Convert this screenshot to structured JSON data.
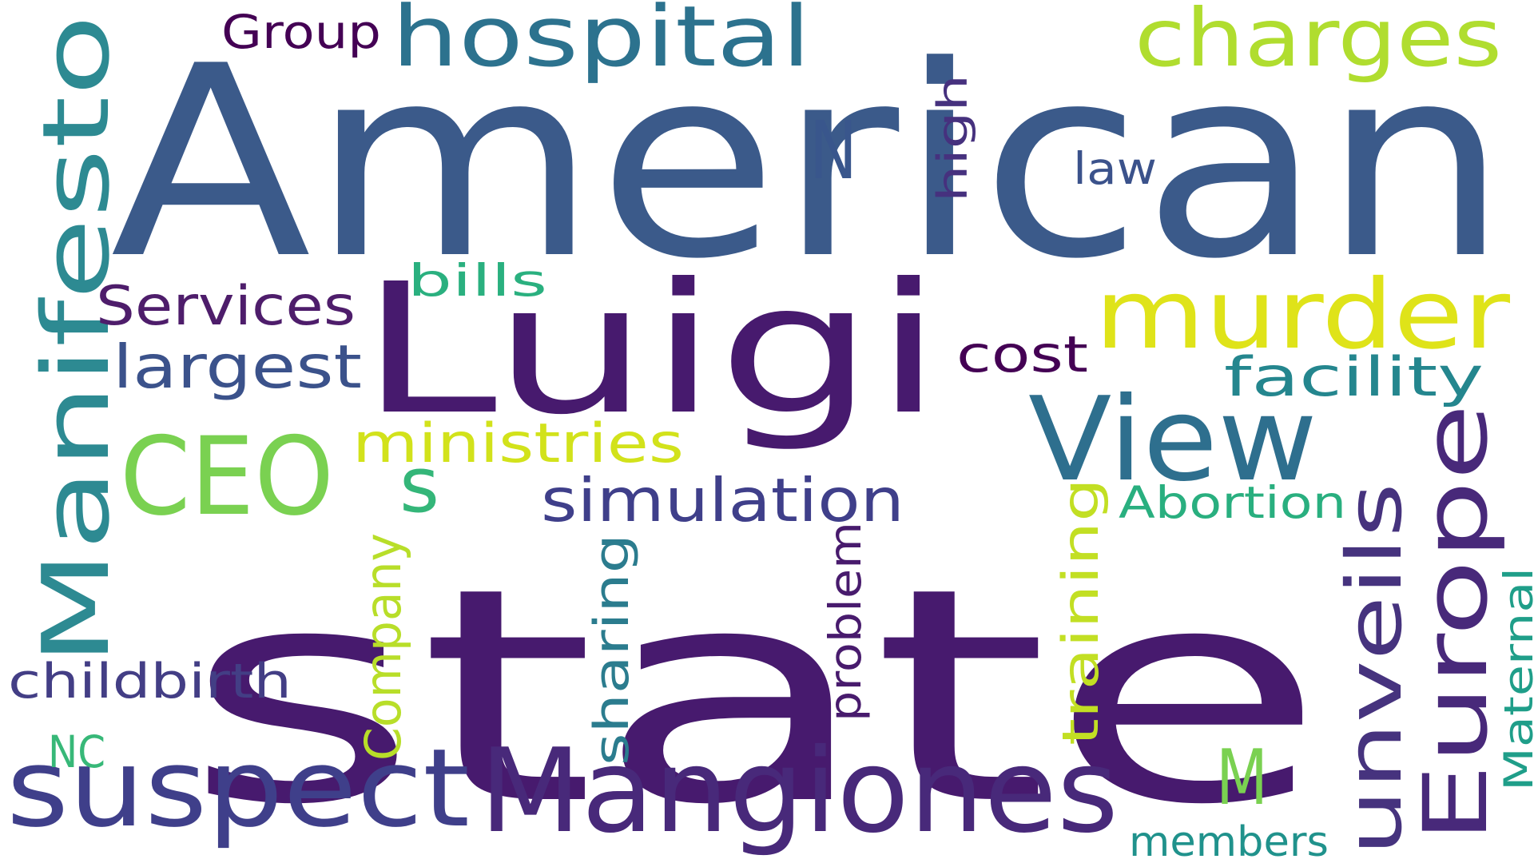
{
  "word_cloud": {
    "words": [
      {
        "text": "state",
        "color": "#471a6e"
      },
      {
        "text": "American",
        "color": "#3b5a8a"
      },
      {
        "text": "Luigi",
        "color": "#471a6e"
      },
      {
        "text": "Manifesto",
        "color": "#2d8a92"
      },
      {
        "text": "Mangiones",
        "color": "#48297a"
      },
      {
        "text": "suspect",
        "color": "#3f3f8a"
      },
      {
        "text": "murder",
        "color": "#dfe319"
      },
      {
        "text": "Europe",
        "color": "#48297a"
      },
      {
        "text": "View",
        "color": "#2e6f8e"
      },
      {
        "text": "CEO",
        "color": "#7ad151"
      },
      {
        "text": "hospital",
        "color": "#2c728e"
      },
      {
        "text": "charges",
        "color": "#b0dd2f"
      },
      {
        "text": "unveils",
        "color": "#46337e"
      },
      {
        "text": "M",
        "color": "#7ad151"
      },
      {
        "text": "Company",
        "color": "#b8de29"
      },
      {
        "text": "training",
        "color": "#c2df23"
      },
      {
        "text": "simulation",
        "color": "#3f3f8a"
      },
      {
        "text": "ministries",
        "color": "#d2e21b"
      },
      {
        "text": "largest",
        "color": "#3b528b"
      },
      {
        "text": "Services",
        "color": "#4e1d6b"
      },
      {
        "text": "childbirth",
        "color": "#433e85"
      },
      {
        "text": "sharing",
        "color": "#2b7c8e"
      },
      {
        "text": "problem",
        "color": "#481b6d"
      },
      {
        "text": "Abortion",
        "color": "#29af7f"
      },
      {
        "text": "facility",
        "color": "#24868e"
      },
      {
        "text": "Maternal",
        "color": "#1f9e89"
      },
      {
        "text": "members",
        "color": "#20928c"
      },
      {
        "text": "cost",
        "color": "#440154"
      },
      {
        "text": "N",
        "color": "#39568c"
      },
      {
        "text": "high",
        "color": "#46317e"
      },
      {
        "text": "law",
        "color": "#3b528b"
      },
      {
        "text": "bills",
        "color": "#2ab07f"
      },
      {
        "text": "Group",
        "color": "#440154"
      },
      {
        "text": "s",
        "color": "#34b679"
      },
      {
        "text": "NC",
        "color": "#37b878"
      }
    ]
  }
}
